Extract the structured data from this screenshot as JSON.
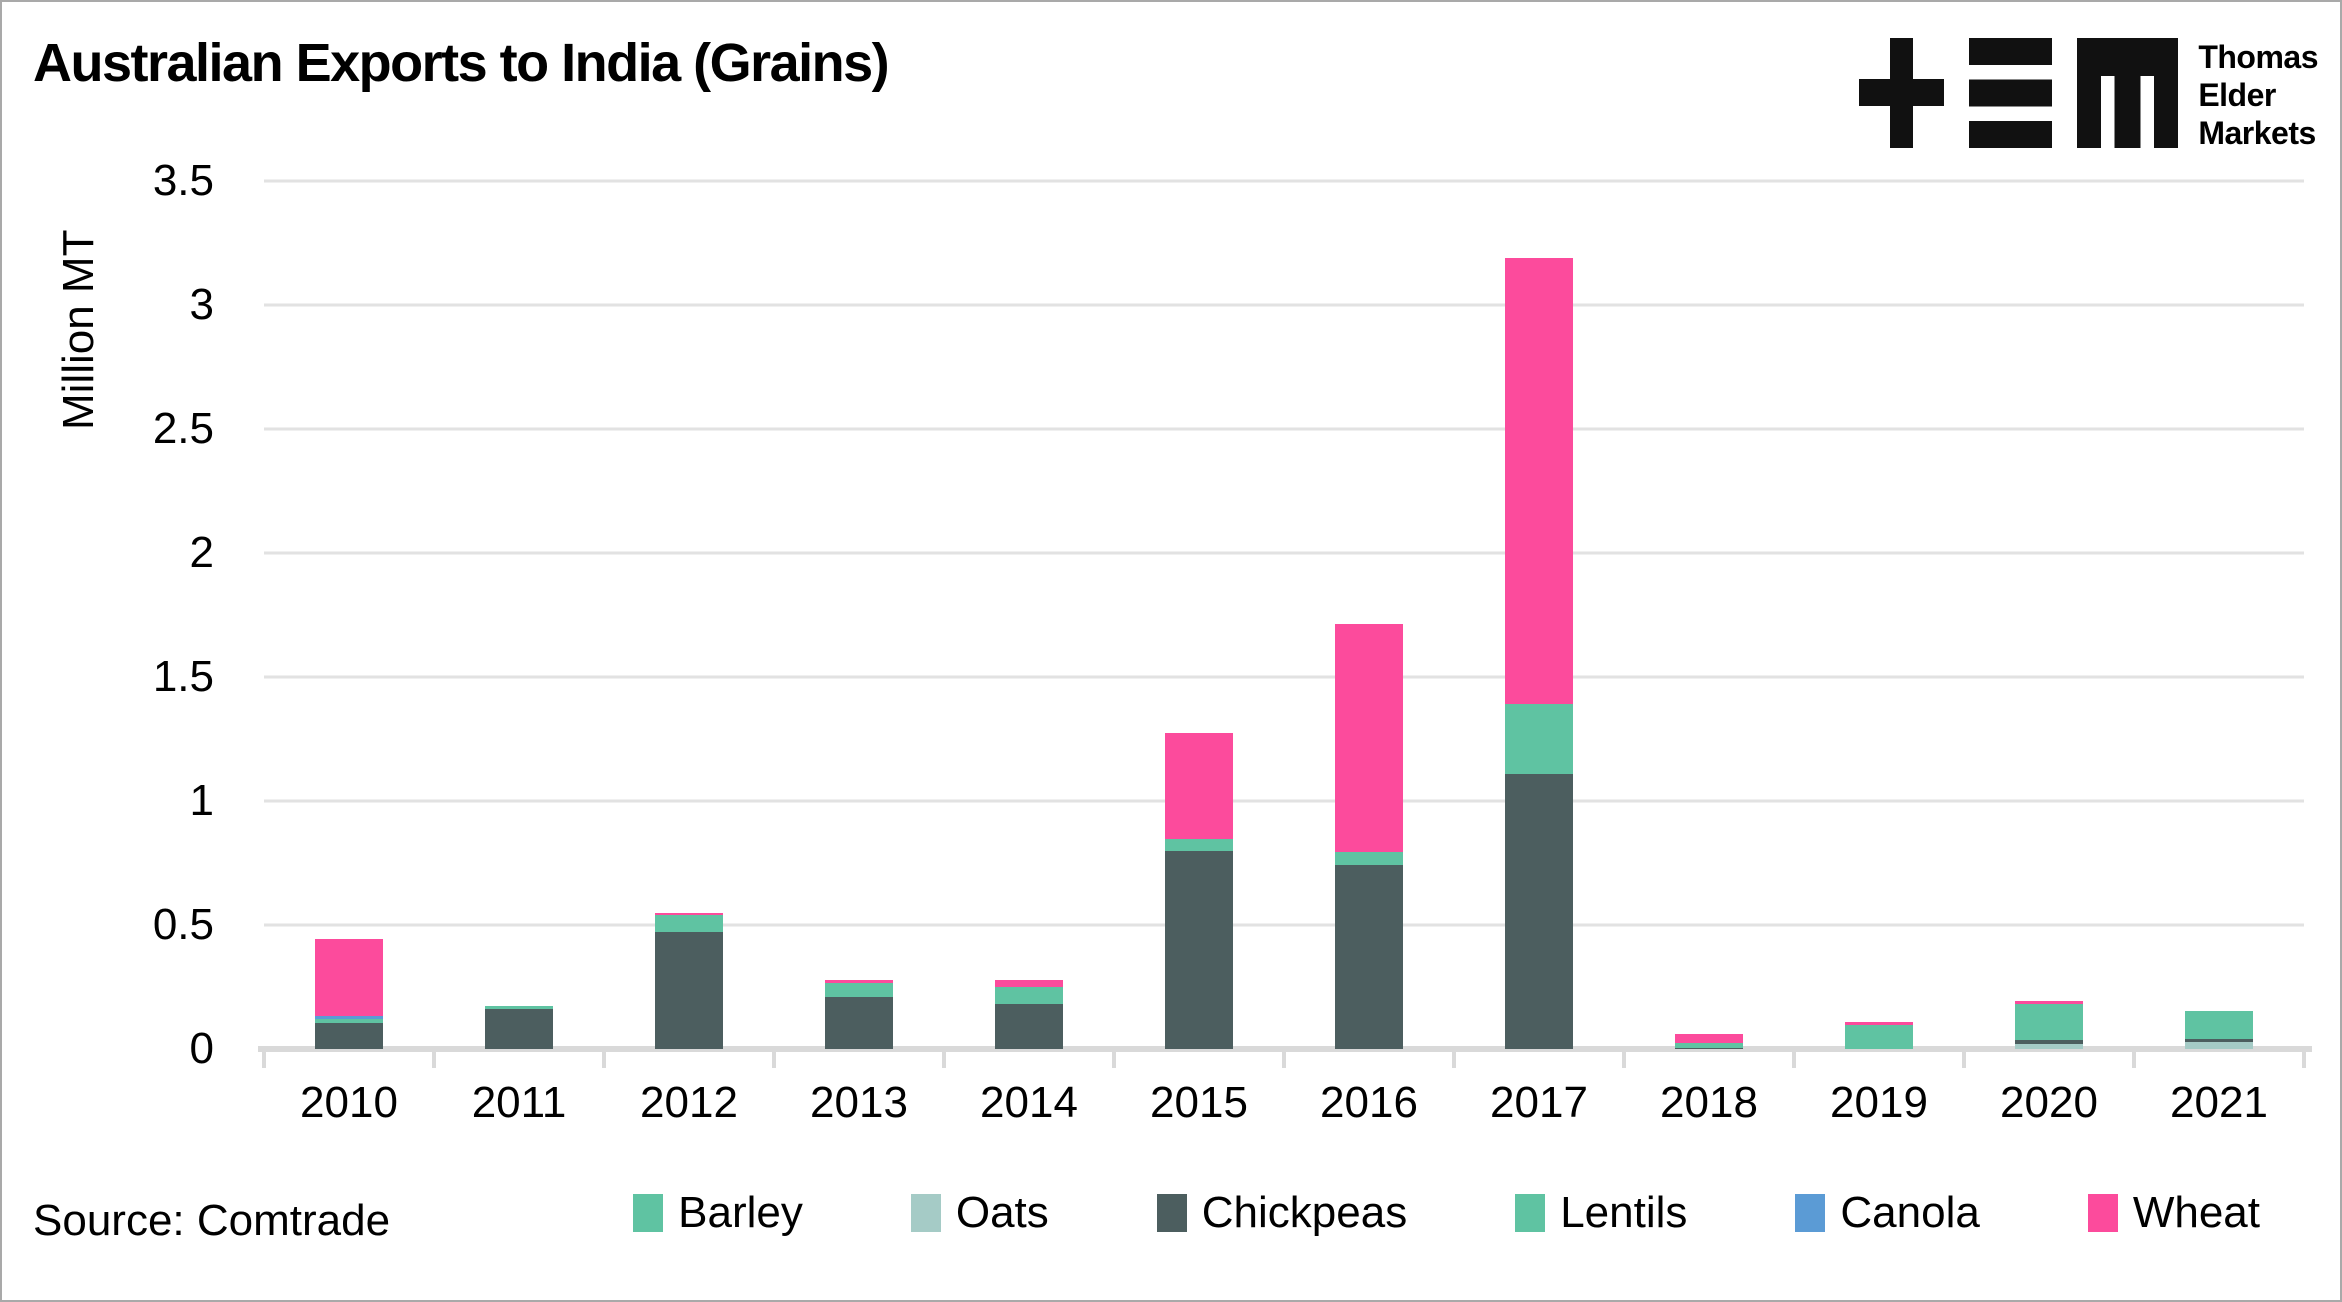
{
  "header": {
    "title": "Australian Exports to India (Grains)",
    "logo": {
      "name": "Thomas Elder Markets",
      "line1": "Thomas",
      "line2": "Elder",
      "line3": "Markets"
    }
  },
  "footer": {
    "source": "Source: Comtrade"
  },
  "colors": {
    "barley": "#5FC3A2",
    "oats": "#A5CBC6",
    "chickpeas": "#4C5E5F",
    "lentils": "#5FC3A2",
    "canola": "#5B9BD5",
    "wheat": "#FC4B9C",
    "gridline": "#E2E2E2",
    "axis": "#D9D9D9",
    "logo": "#111111"
  },
  "chart_data": {
    "type": "bar",
    "stacked": true,
    "title": "Australian Exports to India (Grains)",
    "ylabel": "Million MT",
    "ylim": [
      0,
      3.5
    ],
    "ytick_step": 0.5,
    "yticks": [
      "3.5",
      "3",
      "2.5",
      "2",
      "1.5",
      "1",
      "0.5",
      "0"
    ],
    "grid": true,
    "legend_position": "bottom",
    "categories": [
      "2010",
      "2011",
      "2012",
      "2013",
      "2014",
      "2015",
      "2016",
      "2017",
      "2018",
      "2019",
      "2020",
      "2021"
    ],
    "series": [
      {
        "name": "Barley",
        "color": "#5FC3A2",
        "values": [
          0,
          0,
          0,
          0,
          0,
          0,
          0,
          0,
          0,
          0,
          0,
          0
        ]
      },
      {
        "name": "Oats",
        "color": "#A5CBC6",
        "values": [
          0,
          0,
          0,
          0,
          0,
          0,
          0,
          0,
          0,
          0,
          0.02,
          0.03
        ]
      },
      {
        "name": "Chickpeas",
        "color": "#4C5E5F",
        "values": [
          0.105,
          0.16,
          0.47,
          0.21,
          0.18,
          0.8,
          0.74,
          1.11,
          0.005,
          0,
          0.015,
          0.012
        ]
      },
      {
        "name": "Lentils",
        "color": "#5FC3A2",
        "values": [
          0.015,
          0.012,
          0.072,
          0.055,
          0.07,
          0.045,
          0.055,
          0.28,
          0.02,
          0.095,
          0.145,
          0.11
        ]
      },
      {
        "name": "Canola",
        "color": "#5B9BD5",
        "values": [
          0.012,
          0,
          0,
          0,
          0,
          0,
          0,
          0,
          0,
          0,
          0,
          0
        ]
      },
      {
        "name": "Wheat",
        "color": "#FC4B9C",
        "values": [
          0.31,
          0,
          0.008,
          0.015,
          0.03,
          0.43,
          0.92,
          1.8,
          0.035,
          0.012,
          0.012,
          0
        ]
      }
    ]
  }
}
